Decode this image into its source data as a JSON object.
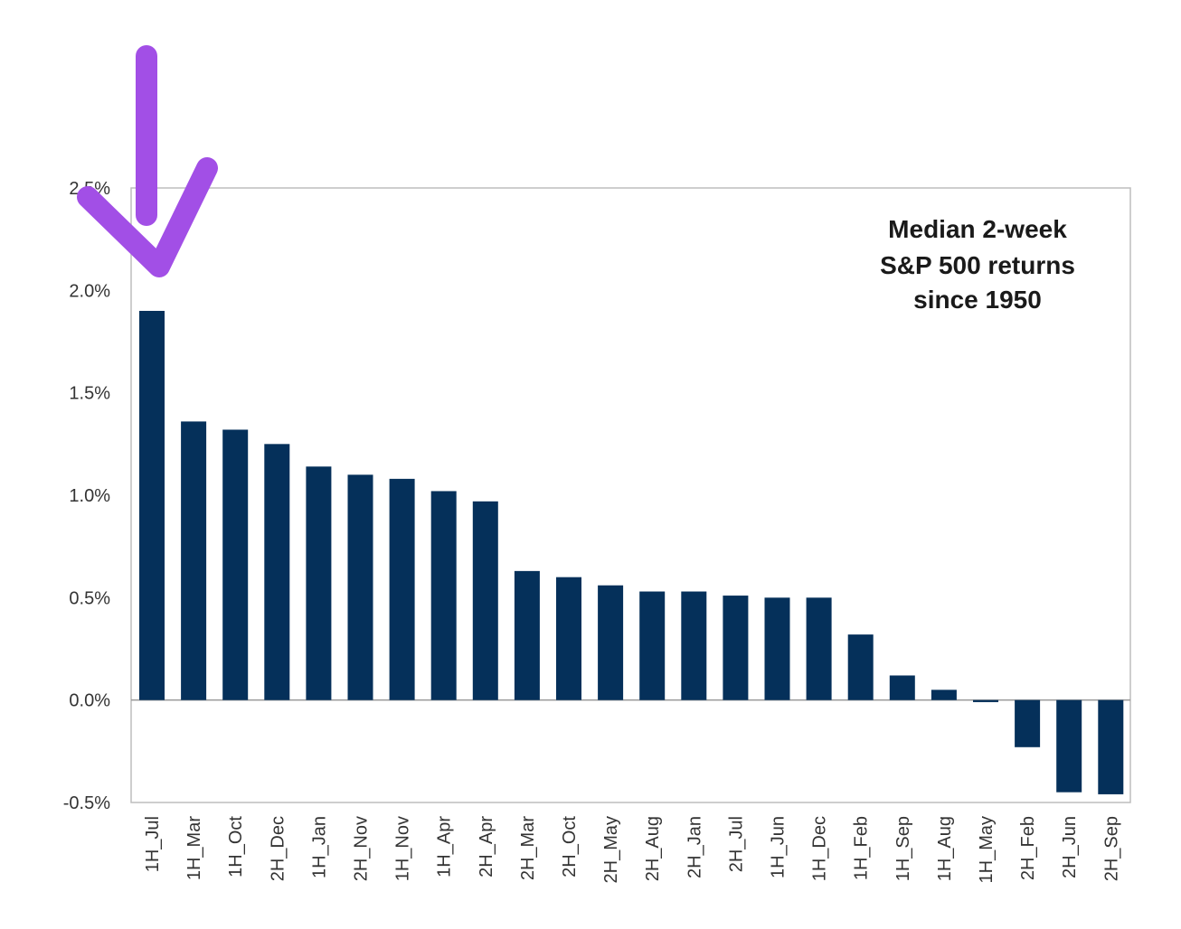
{
  "colors": {
    "bar": "#05305a",
    "plot_border": "#bdbdbd",
    "zero_line": "#999999",
    "annotation_arrow": "#a24fe6"
  },
  "chart_data": {
    "type": "bar",
    "title": "Median 2-week S&P 500 returns since 1950",
    "title_lines": [
      "Median 2-week",
      "S&P 500 returns",
      "since 1950"
    ],
    "xlabel": "",
    "ylabel": "",
    "categories": [
      "1H_Jul",
      "1H_Mar",
      "1H_Oct",
      "2H_Dec",
      "1H_Jan",
      "2H_Nov",
      "1H_Nov",
      "1H_Apr",
      "2H_Apr",
      "2H_Mar",
      "2H_Oct",
      "2H_May",
      "2H_Aug",
      "2H_Jan",
      "2H_Jul",
      "1H_Jun",
      "1H_Dec",
      "1H_Feb",
      "1H_Sep",
      "1H_Aug",
      "1H_May",
      "2H_Feb",
      "2H_Jun",
      "2H_Sep"
    ],
    "values": [
      1.9,
      1.36,
      1.32,
      1.25,
      1.14,
      1.1,
      1.08,
      1.02,
      0.97,
      0.63,
      0.6,
      0.56,
      0.53,
      0.53,
      0.51,
      0.5,
      0.5,
      0.32,
      0.12,
      0.05,
      -0.01,
      -0.23,
      -0.45,
      -0.46
    ],
    "unit": "%",
    "ylim": [
      -0.5,
      2.5
    ],
    "yticks": [
      -0.5,
      0.0,
      0.5,
      1.0,
      1.5,
      2.0,
      2.5
    ],
    "ytick_labels": [
      "-0.5%",
      "0.0%",
      "0.5%",
      "1.0%",
      "1.5%",
      "2.0%",
      "2.5%"
    ],
    "grid": false,
    "legend": "none",
    "annotation": {
      "type": "arrow",
      "direction": "down",
      "target_category": "1H_Jul"
    }
  }
}
